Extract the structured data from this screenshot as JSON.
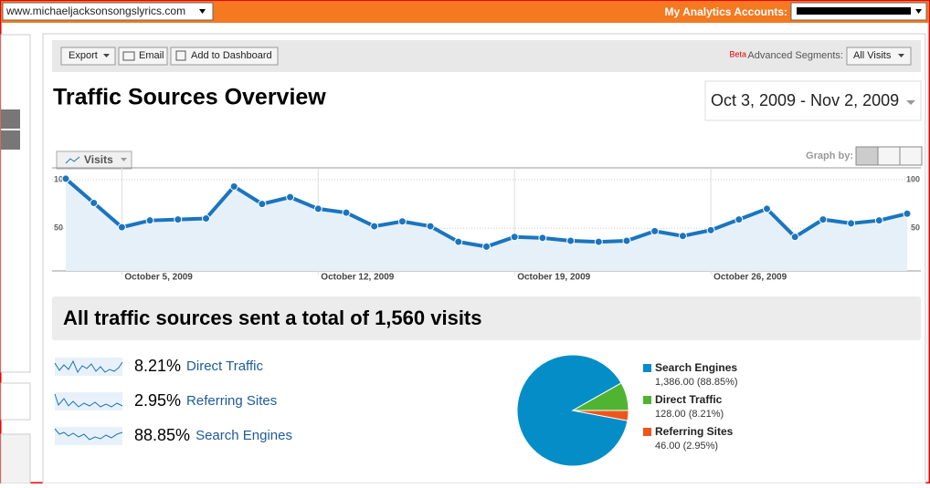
{
  "top_bar": {
    "url": "www.michaeljacksonsongslyrics.com",
    "accounts_label": "My Analytics Accounts:"
  },
  "toolbar": {
    "buttons": [
      "Export",
      "Email",
      "Add to Dashboard"
    ],
    "beta": "Beta",
    "segments_label": "Advanced Segments:",
    "segment": "All Visits"
  },
  "title": "Traffic Sources Overview",
  "date_range": "Oct 3, 2009 - Nov 2, 2009",
  "graph_by": "Graph by:",
  "metric_tab": "Visits",
  "chart_data": [
    {
      "type": "line",
      "categories": [
        null,
        null,
        "October 5, 2009",
        null,
        null,
        null,
        null,
        null,
        null,
        "October 12, 2009",
        null,
        null,
        null,
        null,
        null,
        null,
        "October 19, 2009",
        null,
        null,
        null,
        null,
        null,
        null,
        "October 26, 2009",
        null,
        null,
        null,
        null,
        null,
        null,
        null
      ],
      "series": [
        {
          "name": "Visits",
          "color": "#1a75bf",
          "values": [
            101,
            76,
            51,
            58,
            59,
            60,
            93,
            75,
            82,
            70,
            66,
            52,
            57,
            52,
            36,
            31,
            41,
            40,
            37,
            36,
            37,
            47,
            42,
            48,
            59,
            70,
            41,
            59,
            55,
            58,
            65
          ]
        }
      ],
      "ylim": [
        6,
        100
      ],
      "yticks": [
        50,
        100
      ],
      "grid": true
    },
    {
      "type": "pie",
      "categories": [
        "Search Engines",
        "Direct Traffic",
        "Referring Sites"
      ],
      "values": [
        1386,
        128,
        46
      ],
      "value_labels": [
        "1,386.00 (88.85%)",
        "128.00 (8.21%)",
        "46.00 (2.95%)"
      ],
      "colors": [
        "#058dc7",
        "#50b432",
        "#ed561b"
      ]
    }
  ],
  "summary": "All traffic sources sent a total of 1,560 visits",
  "sources": [
    {
      "percent": "8.21%",
      "name": "Direct Traffic"
    },
    {
      "percent": "2.95%",
      "name": "Referring Sites"
    },
    {
      "percent": "88.85%",
      "name": "Search Engines"
    }
  ]
}
